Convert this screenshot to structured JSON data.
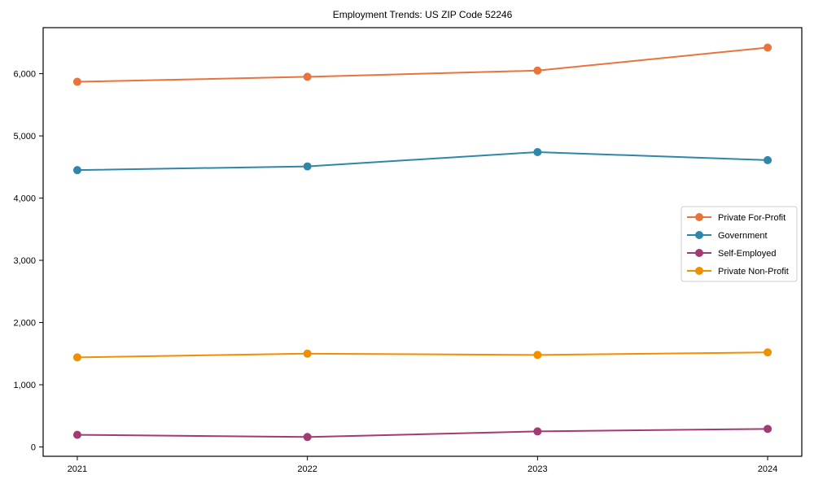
{
  "chart_data": {
    "type": "line",
    "title": "Employment Trends: US ZIP Code 52246",
    "xlabel": "",
    "ylabel": "",
    "x": [
      "2021",
      "2022",
      "2023",
      "2024"
    ],
    "series": [
      {
        "name": "Private For-Profit",
        "color": "#E8743B",
        "values": [
          5870,
          5950,
          6050,
          6420
        ]
      },
      {
        "name": "Government",
        "color": "#2E86AB",
        "values": [
          4450,
          4510,
          4740,
          4610
        ]
      },
      {
        "name": "Self-Employed",
        "color": "#A23B72",
        "values": [
          195,
          160,
          250,
          290
        ]
      },
      {
        "name": "Private Non-Profit",
        "color": "#F18F01",
        "values": [
          1440,
          1500,
          1480,
          1520
        ]
      }
    ],
    "yticks": [
      {
        "value": 0,
        "label": "0"
      },
      {
        "value": 1000,
        "label": "1,000"
      },
      {
        "value": 2000,
        "label": "2,000"
      },
      {
        "value": 3000,
        "label": "3,000"
      },
      {
        "value": 4000,
        "label": "4,000"
      },
      {
        "value": 5000,
        "label": "5,000"
      },
      {
        "value": 6000,
        "label": "6,000"
      }
    ],
    "ylim": [
      -150,
      6740
    ],
    "grid": false,
    "marker": "circle",
    "legend_position": "center right",
    "axis_color": "#000000",
    "legend_border_color": "#cccccc"
  }
}
